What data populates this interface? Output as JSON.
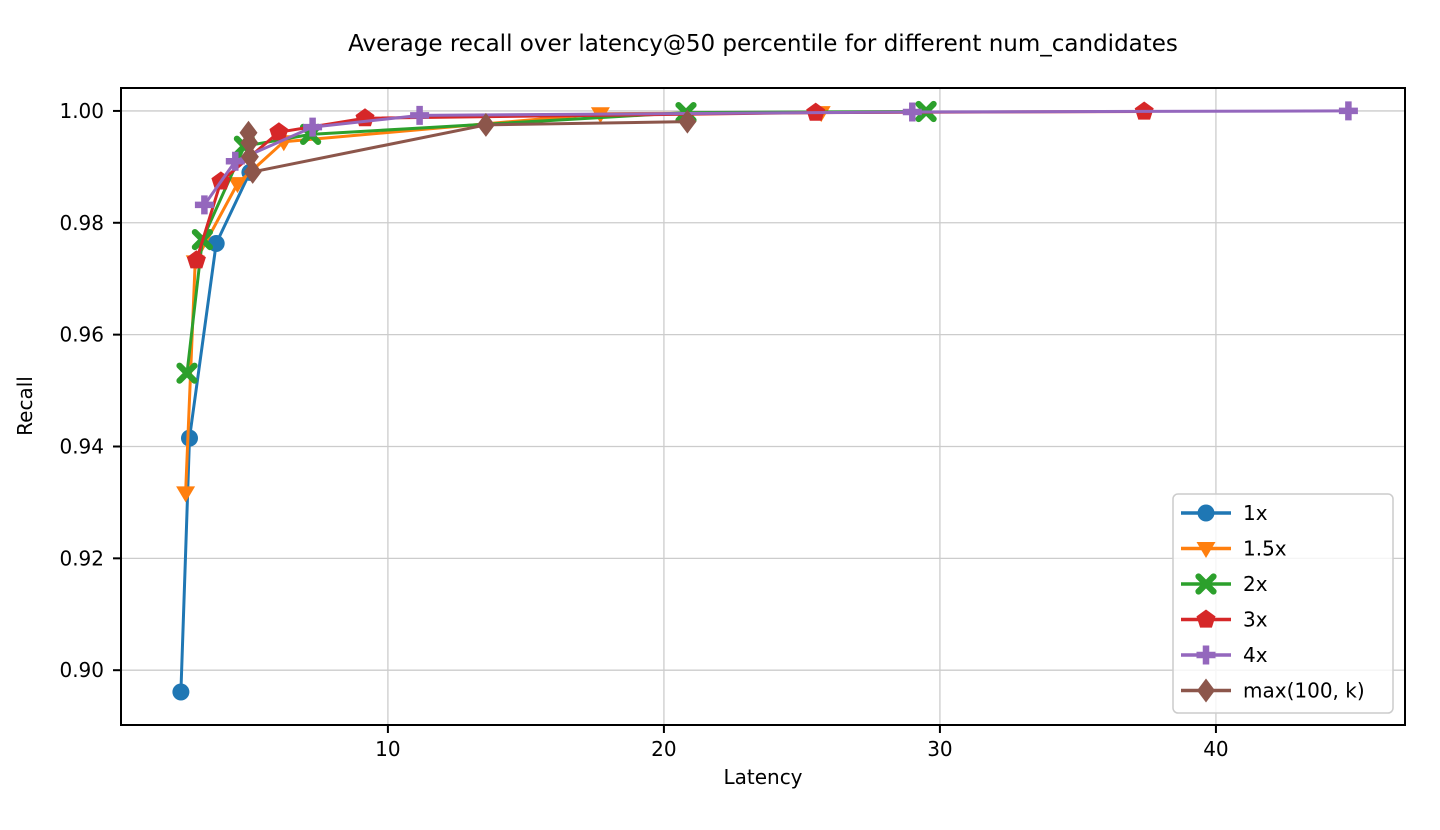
{
  "figure": {
    "background": "#ffffff",
    "text_color": "#000000",
    "grid_color": "#cccccc",
    "spine_color": "#000000"
  },
  "chart_data": {
    "type": "line",
    "title": "Average recall over latency@50 percentile for different num_candidates",
    "xlabel": "Latency",
    "ylabel": "Recall",
    "xlim": [
      0.33,
      46.85
    ],
    "ylim": [
      0.8902,
      1.0041
    ],
    "xticks": [
      10,
      20,
      30,
      40
    ],
    "yticks": [
      0.9,
      0.92,
      0.94,
      0.96,
      0.98,
      1.0
    ],
    "grid": true,
    "legend_position": "lower right",
    "series": [
      {
        "name": "1x",
        "color": "#1f77b4",
        "marker": "circle",
        "points": [
          [
            2.5,
            0.8961
          ],
          [
            2.81,
            0.9415
          ],
          [
            3.78,
            0.9763
          ],
          [
            5.0,
            0.989
          ]
        ]
      },
      {
        "name": "1.5x",
        "color": "#ff7f0e",
        "marker": "triangle-down",
        "points": [
          [
            2.67,
            0.9317
          ],
          [
            3.02,
            0.973
          ],
          [
            4.55,
            0.987
          ],
          [
            6.23,
            0.9945
          ],
          [
            17.7,
            0.9995
          ],
          [
            25.7,
            0.9997
          ]
        ]
      },
      {
        "name": "2x",
        "color": "#2ca02c",
        "marker": "x",
        "points": [
          [
            2.72,
            0.9531
          ],
          [
            3.28,
            0.977
          ],
          [
            4.8,
            0.9937
          ],
          [
            7.2,
            0.9958
          ],
          [
            20.8,
            0.9997
          ],
          [
            29.5,
            0.9999
          ]
        ]
      },
      {
        "name": "3x",
        "color": "#d62728",
        "marker": "pentagon",
        "points": [
          [
            3.06,
            0.9733
          ],
          [
            3.95,
            0.9874
          ],
          [
            6.05,
            0.9962
          ],
          [
            9.17,
            0.9987
          ],
          [
            25.5,
            0.9997
          ],
          [
            37.4,
            0.9999
          ]
        ]
      },
      {
        "name": "4x",
        "color": "#9467bd",
        "marker": "plus",
        "points": [
          [
            3.35,
            0.9832
          ],
          [
            4.47,
            0.991
          ],
          [
            7.27,
            0.9971
          ],
          [
            11.15,
            0.9992
          ],
          [
            29.0,
            0.9998
          ],
          [
            44.8,
            1.0
          ]
        ]
      },
      {
        "name": "max(100, k)",
        "color": "#8c564b",
        "marker": "diamond",
        "points": [
          [
            4.95,
            0.9961
          ],
          [
            4.98,
            0.9943
          ],
          [
            5.0,
            0.9918
          ],
          [
            5.1,
            0.9891
          ],
          [
            13.55,
            0.9975
          ],
          [
            20.85,
            0.9981
          ]
        ]
      }
    ]
  }
}
